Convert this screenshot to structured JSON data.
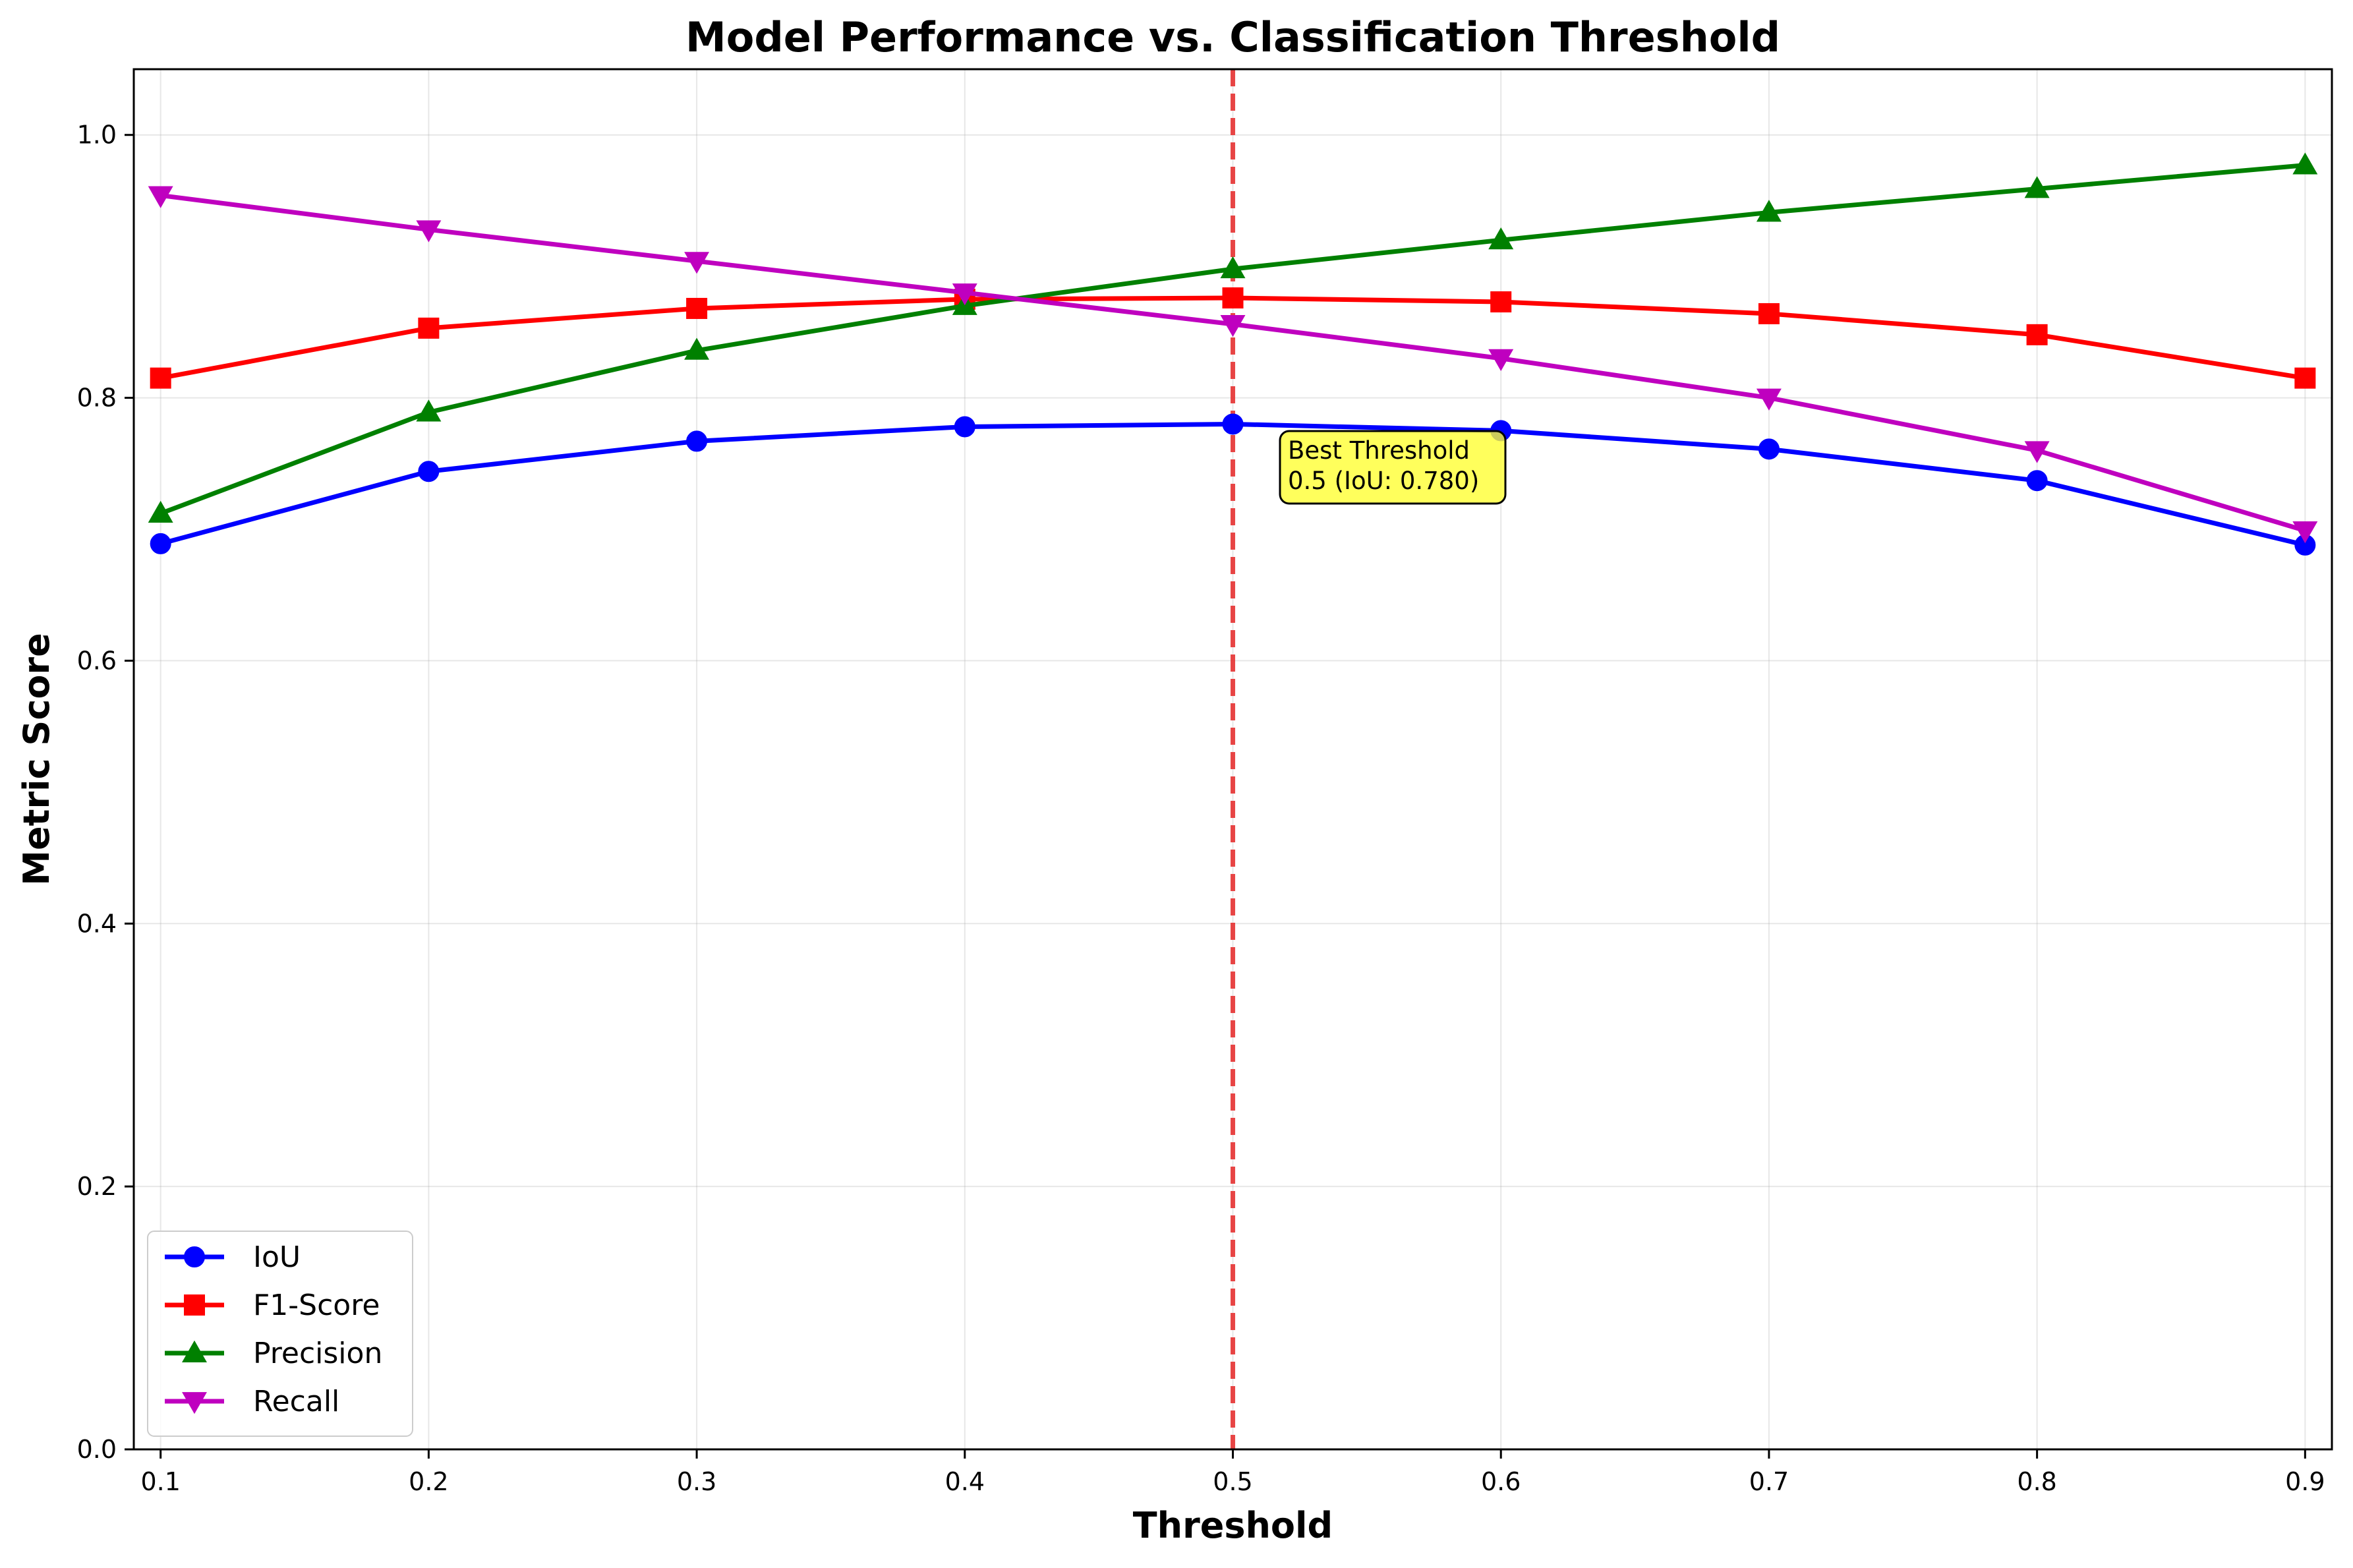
{
  "chart_data": {
    "type": "line",
    "title": "Model Performance vs. Classification Threshold",
    "xlabel": "Threshold",
    "ylabel": "Metric Score",
    "x": [
      0.1,
      0.2,
      0.3,
      0.4,
      0.5,
      0.6,
      0.7,
      0.8,
      0.9
    ],
    "x_tick_labels": [
      "0.1",
      "0.2",
      "0.3",
      "0.4",
      "0.5",
      "0.6",
      "0.7",
      "0.8",
      "0.9"
    ],
    "y_tick_labels": [
      "0.0",
      "0.2",
      "0.4",
      "0.6",
      "0.8",
      "1.0"
    ],
    "y_ticks": [
      0.0,
      0.2,
      0.4,
      0.6,
      0.8,
      1.0
    ],
    "xlim": [
      0.09,
      0.91
    ],
    "ylim": [
      0.0,
      1.05
    ],
    "grid": true,
    "legend_position": "lower-left",
    "series": [
      {
        "name": "IoU",
        "color": "#0000ff",
        "marker": "circle",
        "values": [
          0.689,
          0.744,
          0.767,
          0.778,
          0.78,
          0.775,
          0.761,
          0.737,
          0.688
        ]
      },
      {
        "name": "F1-Score",
        "color": "#ff0000",
        "marker": "square",
        "values": [
          0.815,
          0.853,
          0.868,
          0.875,
          0.876,
          0.873,
          0.864,
          0.848,
          0.815
        ]
      },
      {
        "name": "Precision",
        "color": "#008000",
        "marker": "triangle-up",
        "values": [
          0.712,
          0.789,
          0.836,
          0.87,
          0.898,
          0.92,
          0.941,
          0.959,
          0.977
        ]
      },
      {
        "name": "Recall",
        "color": "#bf00bf",
        "marker": "triangle-down",
        "values": [
          0.954,
          0.928,
          0.904,
          0.88,
          0.856,
          0.83,
          0.8,
          0.76,
          0.699
        ]
      }
    ],
    "best_threshold_line": {
      "x": 0.5,
      "color": "#e63232",
      "style": "dashed"
    },
    "annotation": {
      "lines": [
        "Best Threshold",
        "0.5 (IoU: 0.780)"
      ],
      "background": "#ffff33"
    }
  }
}
